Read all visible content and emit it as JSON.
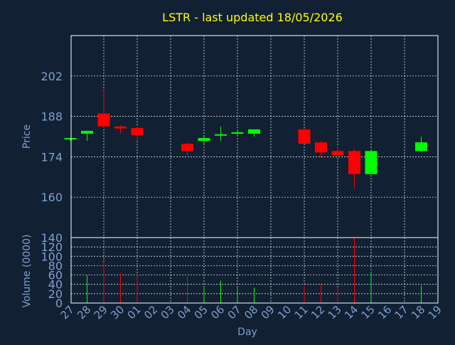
{
  "chart_data": {
    "type": "candlestick",
    "title": "LSTR - last updated 18/05/2026",
    "xlabel": "Day",
    "x_ticks": [
      "27",
      "28",
      "29",
      "30",
      "01",
      "02",
      "03",
      "04",
      "05",
      "06",
      "07",
      "08",
      "09",
      "10",
      "11",
      "12",
      "13",
      "14",
      "15",
      "16",
      "17",
      "18",
      "19"
    ],
    "price_panel": {
      "ylabel": "Price",
      "yticks": [
        160,
        174,
        188,
        202
      ],
      "ylim": [
        146,
        216
      ],
      "grid": true
    },
    "volume_panel": {
      "ylabel": "Volume (0000)",
      "yticks": [
        0,
        20,
        40,
        60,
        80,
        100,
        120,
        140
      ],
      "ylim": [
        0,
        140
      ],
      "grid": true
    },
    "colors": {
      "up": "#00ff00",
      "down": "#ff0000",
      "background": "#112033",
      "title": "#ffff00",
      "axis_text": "#7f9fcf",
      "frame": "#ffffff"
    },
    "candles": [
      {
        "day": "27",
        "open": 180.0,
        "high": 180.5,
        "low": 179.5,
        "close": 180.5,
        "volume": 0
      },
      {
        "day": "28",
        "open": 182.0,
        "high": 183.0,
        "low": 179.5,
        "close": 183.0,
        "volume": 60
      },
      {
        "day": "29",
        "open": 189.0,
        "high": 197.0,
        "low": 184.0,
        "close": 184.5,
        "volume": 88
      },
      {
        "day": "30",
        "open": 184.5,
        "high": 185.0,
        "low": 182.0,
        "close": 183.8,
        "volume": 64
      },
      {
        "day": "01",
        "open": 184.0,
        "high": 184.5,
        "low": 179.5,
        "close": 181.5,
        "volume": 60
      },
      {
        "day": "04",
        "open": 178.5,
        "high": 178.8,
        "low": 174.5,
        "close": 176.0,
        "volume": 57
      },
      {
        "day": "05",
        "open": 179.5,
        "high": 181.0,
        "low": 178.5,
        "close": 180.5,
        "volume": 33
      },
      {
        "day": "06",
        "open": 181.5,
        "high": 184.5,
        "low": 179.5,
        "close": 181.8,
        "volume": 48
      },
      {
        "day": "07",
        "open": 182.0,
        "high": 183.5,
        "low": 181.0,
        "close": 182.5,
        "volume": 36
      },
      {
        "day": "08",
        "open": 182.0,
        "high": 183.5,
        "low": 181.0,
        "close": 183.5,
        "volume": 33
      },
      {
        "day": "11",
        "open": 183.5,
        "high": 184.0,
        "low": 178.5,
        "close": 178.5,
        "volume": 37
      },
      {
        "day": "12",
        "open": 179.0,
        "high": 179.5,
        "low": 173.5,
        "close": 175.5,
        "volume": 42
      },
      {
        "day": "13",
        "open": 176.0,
        "high": 177.5,
        "low": 174.0,
        "close": 174.5,
        "volume": 34
      },
      {
        "day": "14",
        "open": 176.0,
        "high": 176.8,
        "low": 163.0,
        "close": 168.0,
        "volume": 140
      },
      {
        "day": "15",
        "open": 168.0,
        "high": 176.5,
        "low": 168.0,
        "close": 176.0,
        "volume": 67
      },
      {
        "day": "18",
        "open": 176.0,
        "high": 181.0,
        "low": 175.8,
        "close": 179.0,
        "volume": 37
      }
    ]
  }
}
